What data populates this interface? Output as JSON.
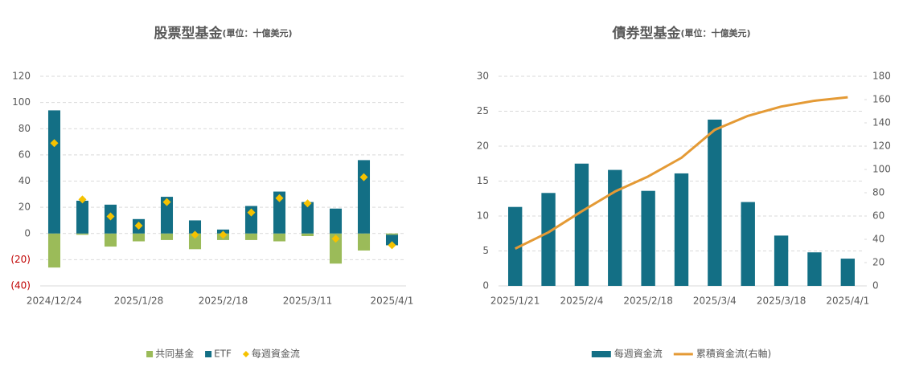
{
  "chart_data": [
    {
      "type": "bar",
      "stacked": true,
      "title": "股票型基金",
      "subtitle": "(單位：十億美元)",
      "categories": [
        "2024/12/24",
        null,
        null,
        "2025/1/28",
        null,
        null,
        "2025/2/18",
        null,
        null,
        "2025/3/11",
        null,
        null,
        "2025/4/1"
      ],
      "series": [
        {
          "name": "共同基金",
          "type": "bar",
          "color": "#9bbb59",
          "values": [
            -26,
            -1,
            -10,
            -6,
            -5,
            -12,
            -5,
            -5,
            -6,
            -2,
            -23,
            -13,
            -1
          ]
        },
        {
          "name": "ETF",
          "type": "bar",
          "color": "#136f85",
          "values": [
            94,
            25,
            22,
            11,
            28,
            10,
            3,
            21,
            32,
            24,
            19,
            56,
            -8
          ]
        },
        {
          "name": "每週資金流",
          "type": "scatter",
          "color": "#f5c200",
          "values": [
            69,
            26,
            13,
            6,
            24,
            -1,
            -1,
            16,
            27,
            23,
            -4,
            43,
            -9
          ]
        }
      ],
      "ylim": [
        -40,
        120
      ],
      "yticks": [
        {
          "value": -40,
          "label": "(40)"
        },
        {
          "value": -20,
          "label": "(20)"
        },
        0,
        20,
        40,
        60,
        80,
        100,
        120
      ],
      "grid": true,
      "legend": "bottom"
    },
    {
      "type": "bar",
      "stacked": false,
      "title": "債券型基金",
      "subtitle": "(單位：十億美元)",
      "categories": [
        "2025/1/21",
        null,
        "2025/2/4",
        null,
        "2025/2/18",
        null,
        "2025/3/4",
        null,
        "2025/3/18",
        null,
        "2025/4/1"
      ],
      "series": [
        {
          "name": "每週資金流",
          "type": "bar",
          "color": "#136f85",
          "values": [
            11.3,
            13.3,
            17.5,
            16.6,
            13.6,
            16.1,
            23.8,
            12.0,
            7.2,
            4.8,
            3.9
          ]
        },
        {
          "name": "累積資金流(右軸)",
          "type": "line",
          "axis": "y2",
          "color": "#e49a35",
          "values": [
            32,
            46,
            64,
            81,
            94,
            110,
            134,
            146,
            154,
            159,
            162
          ]
        }
      ],
      "ylim": [
        0,
        30
      ],
      "yticks": [
        0,
        5,
        10,
        15,
        20,
        25,
        30
      ],
      "y2lim": [
        0,
        180
      ],
      "y2ticks": [
        0,
        20,
        40,
        60,
        80,
        100,
        120,
        140,
        160,
        180
      ],
      "grid": true,
      "legend": "bottom"
    }
  ]
}
